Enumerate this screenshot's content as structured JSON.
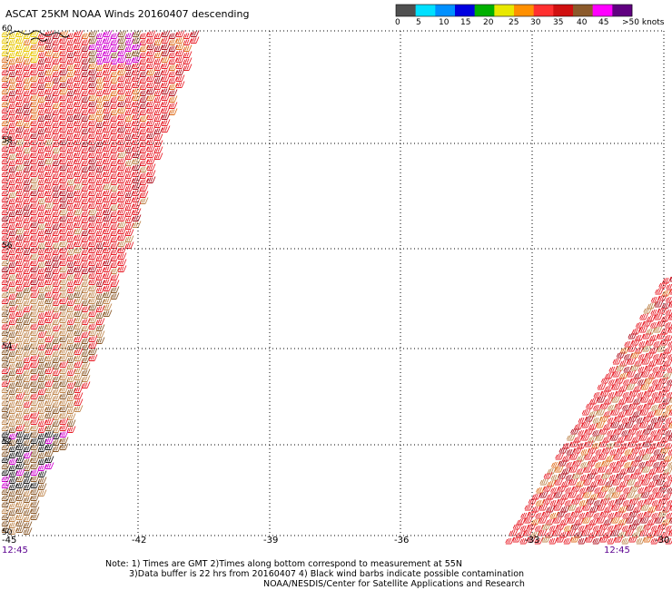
{
  "title": "ASCAT 25KM NOAA Winds 20160407 descending",
  "legend": {
    "labels": [
      "0",
      "5",
      "10",
      "15",
      "20",
      "25",
      "30",
      "35",
      "40",
      "45",
      ">50 knots"
    ],
    "colors": [
      "#505050",
      "#00e0ff",
      "#0090ff",
      "#0000e0",
      "#00b000",
      "#e8e800",
      "#ff9000",
      "#ff3030",
      "#d01010",
      "#8b5a2b",
      "#ff00ff",
      "#600080"
    ]
  },
  "axes": {
    "lon_labels": [
      "-45",
      "-42",
      "-39",
      "-36",
      "-33",
      "-30"
    ],
    "lat_labels": [
      "60",
      "58",
      "56",
      "54",
      "52",
      "50"
    ]
  },
  "times": [
    "12:45",
    "12:45"
  ],
  "notes": [
    "Note: 1) Times are GMT 2)Times along bottom correspond to measurement at 55N",
    "3)Data buffer is 22 hrs from 20160407 4) Black wind barbs indicate possible contamination",
    "NOAA/NESDIS/Center for Satellite Applications and Research"
  ],
  "barb_palette": {
    "red": "#e8202a",
    "darkred": "#b0101e",
    "brown": "#8b5a2b",
    "tan": "#c08850",
    "orange": "#e07020",
    "yellow": "#e8c800",
    "magenta": "#d000d0",
    "black": "#202020"
  }
}
